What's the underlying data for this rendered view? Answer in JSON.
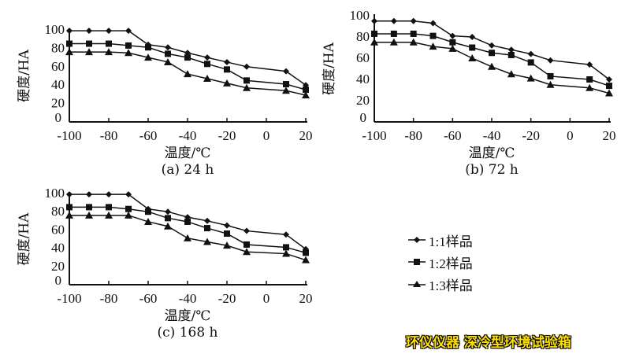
{
  "chart_data": [
    {
      "type": "line",
      "caption": "(a) 24 h",
      "xlabel": "温度/℃",
      "ylabel": "硬度/HA",
      "xlim": [
        -100,
        20
      ],
      "ylim": [
        0,
        100
      ],
      "xticks": [
        -100,
        -80,
        -60,
        -40,
        -20,
        0,
        20
      ],
      "yticks": [
        0,
        20,
        40,
        60,
        80,
        100
      ],
      "x": [
        -100,
        -90,
        -80,
        -70,
        -60,
        -50,
        -40,
        -30,
        -20,
        -10,
        10,
        20
      ],
      "series": [
        {
          "name": "1:1样品",
          "marker": "diamond",
          "values": [
            99,
            99,
            99,
            99,
            84,
            81,
            75,
            70,
            65,
            60,
            55,
            40
          ]
        },
        {
          "name": "1:2样品",
          "marker": "square",
          "values": [
            85,
            85,
            85,
            83,
            81,
            74,
            70,
            63,
            57,
            45,
            41,
            35
          ]
        },
        {
          "name": "1:3样品",
          "marker": "triangle",
          "values": [
            76,
            76,
            76,
            75,
            70,
            65,
            52,
            47,
            42,
            37,
            34,
            29
          ]
        }
      ]
    },
    {
      "type": "line",
      "caption": "(b) 72 h",
      "xlabel": "温度/℃",
      "ylabel": "硬度/HA",
      "xlim": [
        -100,
        20
      ],
      "ylim": [
        0,
        100
      ],
      "xticks": [
        -100,
        -80,
        -60,
        -40,
        -20,
        0,
        20
      ],
      "yticks": [
        0,
        20,
        40,
        60,
        80,
        100
      ],
      "x": [
        -100,
        -90,
        -80,
        -70,
        -60,
        -50,
        -40,
        -30,
        -20,
        -10,
        10,
        20
      ],
      "series": [
        {
          "name": "1:1样品",
          "marker": "diamond",
          "values": [
            95,
            95,
            95,
            93,
            81,
            80,
            72,
            68,
            64,
            58,
            54,
            40
          ]
        },
        {
          "name": "1:2样品",
          "marker": "square",
          "values": [
            83,
            83,
            83,
            81,
            75,
            70,
            65,
            63,
            56,
            43,
            40,
            34
          ]
        },
        {
          "name": "1:3样品",
          "marker": "triangle",
          "values": [
            75,
            75,
            75,
            71,
            69,
            60,
            52,
            45,
            41,
            35,
            32,
            27
          ]
        }
      ]
    },
    {
      "type": "line",
      "caption": "(c) 168 h",
      "xlabel": "温度/℃",
      "ylabel": "硬度/HA",
      "xlim": [
        -100,
        20
      ],
      "ylim": [
        0,
        100
      ],
      "xticks": [
        -100,
        -80,
        -60,
        -40,
        -20,
        0,
        20
      ],
      "yticks": [
        0,
        20,
        40,
        60,
        80,
        100
      ],
      "x": [
        -100,
        -90,
        -80,
        -70,
        -60,
        -50,
        -40,
        -30,
        -20,
        -10,
        10,
        20
      ],
      "series": [
        {
          "name": "1:1样品",
          "marker": "diamond",
          "values": [
            99,
            99,
            99,
            99,
            83,
            80,
            74,
            70,
            65,
            59,
            55,
            39
          ]
        },
        {
          "name": "1:2样品",
          "marker": "square",
          "values": [
            85,
            85,
            85,
            83,
            80,
            73,
            69,
            62,
            56,
            44,
            41,
            35
          ]
        },
        {
          "name": "1:3样品",
          "marker": "triangle",
          "values": [
            76,
            76,
            76,
            76,
            69,
            64,
            51,
            47,
            43,
            36,
            34,
            27
          ]
        }
      ]
    }
  ],
  "legend": {
    "placement": "bottom-right",
    "items": [
      "1:1样品",
      "1:2样品",
      "1:3样品"
    ]
  },
  "watermark": "环仪仪器 深冷型环境试验箱",
  "colors": {
    "line": "#111111",
    "watermark": "#ffe000"
  }
}
